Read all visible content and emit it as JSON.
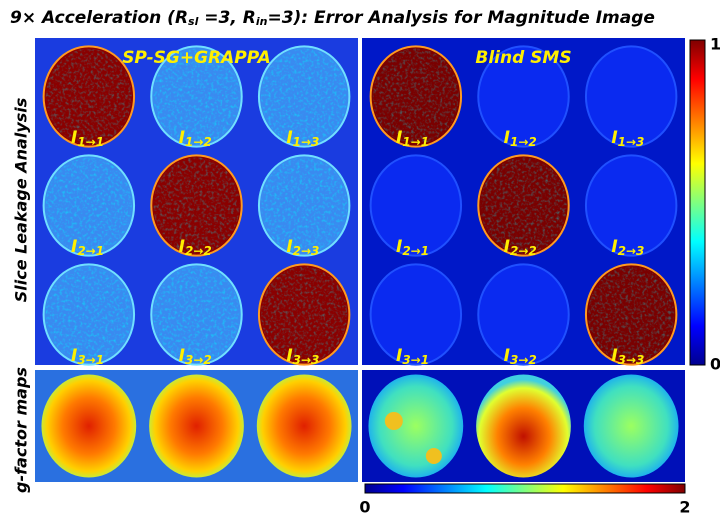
{
  "figure": {
    "title_parts": [
      {
        "text": "9× Acceleration (R",
        "sub": false
      },
      {
        "text": "sl",
        "sub": true
      },
      {
        "text": " =3, R",
        "sub": false
      },
      {
        "text": "in",
        "sub": true
      },
      {
        "text": "=3): Error Analysis for Magnitude Image",
        "sub": false
      }
    ],
    "row_labels": [
      "Slice Leakage Analysis",
      "g-factor maps"
    ],
    "panels": [
      {
        "title": "SP-SG+GRAPPA",
        "cells": [
          {
            "main": "I",
            "sub": "1→1"
          },
          {
            "main": "I",
            "sub": "1→2"
          },
          {
            "main": "I",
            "sub": "1→3"
          },
          {
            "main": "I",
            "sub": "2→1"
          },
          {
            "main": "I",
            "sub": "2→2"
          },
          {
            "main": "I",
            "sub": "2→3"
          },
          {
            "main": "I",
            "sub": "3→1"
          },
          {
            "main": "I",
            "sub": "3→2"
          },
          {
            "main": "I",
            "sub": "3→3"
          }
        ]
      },
      {
        "title": "Blind SMS",
        "cells": [
          {
            "main": "I",
            "sub": "1→1"
          },
          {
            "main": "I",
            "sub": "1→2"
          },
          {
            "main": "I",
            "sub": "1→3"
          },
          {
            "main": "I",
            "sub": "2→1"
          },
          {
            "main": "I",
            "sub": "2→2"
          },
          {
            "main": "I",
            "sub": "2→3"
          },
          {
            "main": "I",
            "sub": "3→1"
          },
          {
            "main": "I",
            "sub": "3→2"
          },
          {
            "main": "I",
            "sub": "3→3"
          }
        ]
      }
    ],
    "colorbars": [
      {
        "orientation": "vertical",
        "lim": [
          0,
          1
        ],
        "ticks": [
          1,
          0
        ]
      },
      {
        "orientation": "horizontal",
        "lim": [
          0,
          2
        ],
        "ticks": [
          0,
          2
        ]
      }
    ]
  }
}
